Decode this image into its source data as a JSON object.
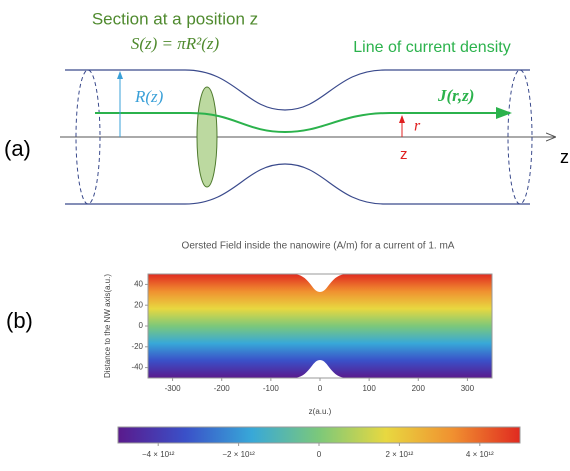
{
  "diagram": {
    "panel_a": "(a)",
    "panel_b": "(b)",
    "section_title": "Section at a position z",
    "section_formula": "S(z) = πR²(z)",
    "current_line": "Line of current density",
    "radius_label": "R(z)",
    "current_label": "J(r,z)",
    "r_label": "r",
    "z_label_red": "z",
    "axis_label": "z"
  },
  "chart_data": {
    "type": "density",
    "title": "Oersted Field inside the nanowire (A/m) for a current of 1. mA",
    "x_label": "z(a.u.)",
    "y_label": "Distance to the NW axis(a.u.)",
    "xlim": [
      -350,
      350
    ],
    "xticks": [
      -300,
      -200,
      -100,
      0,
      100,
      200,
      300
    ],
    "ylim": [
      -50,
      50
    ],
    "yticks": [
      -40,
      -20,
      0,
      20,
      40
    ],
    "colorbar": {
      "lim": [
        -5000000000000,
        5000000000000
      ],
      "ticks": [
        {
          "value": -4000000000000,
          "label": "−4 × 10¹²"
        },
        {
          "value": -2000000000000,
          "label": "−2 × 10¹²"
        },
        0,
        {
          "value": 2000000000000,
          "label": "2 × 10¹²"
        },
        {
          "value": 4000000000000,
          "label": "4 × 10¹²"
        }
      ],
      "colors": [
        "#5a1a8c",
        "#3a50c8",
        "#38a8d8",
        "#7cc87a",
        "#e8d840",
        "#f09030",
        "#e02a20"
      ]
    }
  }
}
